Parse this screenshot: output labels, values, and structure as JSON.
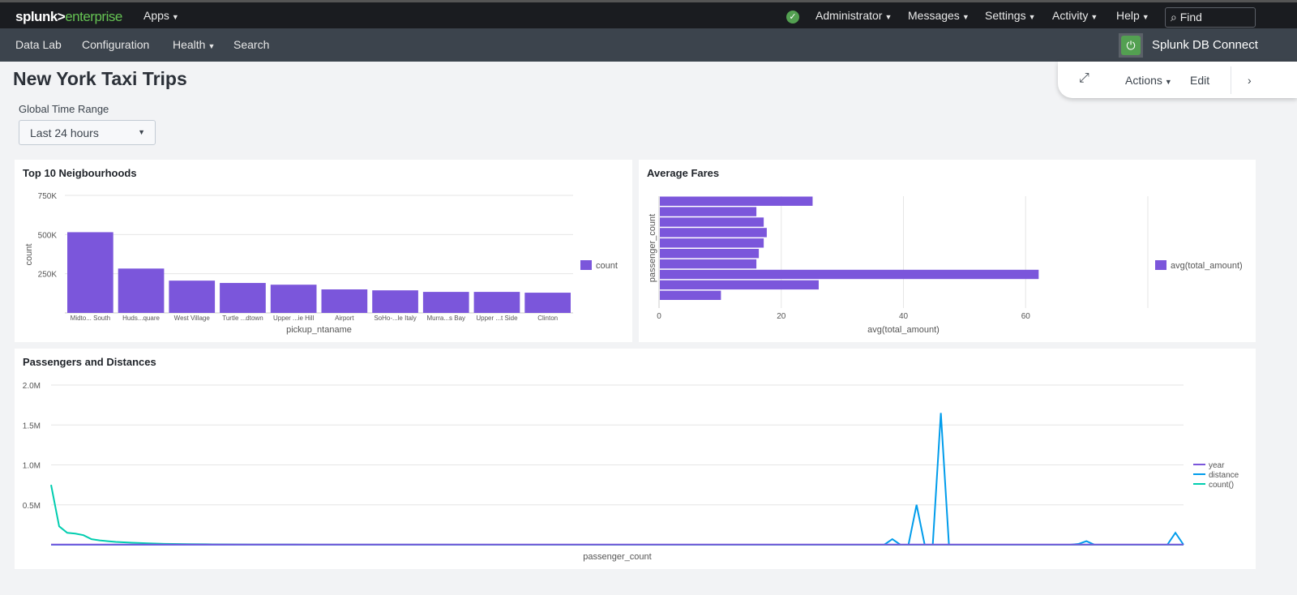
{
  "topbar": {
    "logo_main": "splunk>",
    "logo_accent": "enterprise",
    "apps": "Apps",
    "administrator": "Administrator",
    "messages": "Messages",
    "settings": "Settings",
    "activity": "Activity",
    "help": "Help",
    "find_placeholder": "Find",
    "status_icon": "check-circle-icon"
  },
  "appbar": {
    "items": [
      "Data Lab",
      "Configuration",
      "Health",
      "Search"
    ],
    "app_name": "Splunk DB Connect",
    "app_icon": "plug-icon"
  },
  "dashboard": {
    "title": "New York Taxi Trips",
    "actions": "Actions",
    "edit": "Edit",
    "expand_icon": "expand-icon",
    "next_icon": "chevron-right-icon"
  },
  "inputs": {
    "time_label": "Global Time Range",
    "time_value": "Last 24 hours"
  },
  "colors": {
    "bar": "#7b56db",
    "distance": "#009ceb",
    "count": "#00cdaf",
    "year": "#7b56db",
    "topbar": "#1a1c20",
    "appbar": "#3c444d"
  },
  "chart_data": [
    {
      "type": "bar",
      "title": "Top 10 Neigbourhoods",
      "xlabel": "pickup_ntaname",
      "ylabel": "count",
      "categories": [
        "Midto... South",
        "Huds...quare",
        "West Village",
        "Turtle ...dtown",
        "Upper ...ie Hill",
        "Airport",
        "SoHo-...le Italy",
        "Murra...s Bay",
        "Upper ...t Side",
        "Clinton"
      ],
      "values": [
        515000,
        283000,
        206000,
        191000,
        180000,
        150000,
        144000,
        134000,
        134000,
        129000
      ],
      "ylim": [
        0,
        750000
      ],
      "yticks": [
        "250K",
        "500K",
        "750K"
      ],
      "legend": [
        "count"
      ],
      "legend_position": "right",
      "grid": true
    },
    {
      "type": "bar",
      "orientation": "horizontal",
      "title": "Average Fares",
      "xlabel": "avg(total_amount)",
      "ylabel": "passenger_count",
      "values": [
        25,
        15.8,
        17,
        17.5,
        17,
        16.2,
        15.8,
        62,
        26,
        10
      ],
      "xlim": [
        0,
        80
      ],
      "xticks": [
        "0",
        "20",
        "40",
        "60"
      ],
      "legend": [
        "avg(total_amount)"
      ],
      "legend_position": "right",
      "grid": true
    },
    {
      "type": "line",
      "title": "Passengers and Distances",
      "xlabel": "passenger_count",
      "ylim": [
        0,
        2000000
      ],
      "yticks": [
        "0.5M",
        "1.0M",
        "1.5M",
        "2.0M"
      ],
      "xlim": [
        0,
        140
      ],
      "legend_position": "right",
      "grid": true,
      "series": [
        {
          "name": "year",
          "points": [
            [
              0,
              2016
            ],
            [
              140,
              2016
            ]
          ]
        },
        {
          "name": "distance",
          "points": [
            [
              0,
              0
            ],
            [
              103,
              0
            ],
            [
              104,
              70000
            ],
            [
              105,
              0
            ],
            [
              106,
              0
            ],
            [
              107,
              500000
            ],
            [
              108,
              0
            ],
            [
              109,
              0
            ],
            [
              110,
              1650000
            ],
            [
              111,
              0
            ],
            [
              126,
              0
            ],
            [
              127,
              10000
            ],
            [
              128,
              45000
            ],
            [
              129,
              0
            ],
            [
              138,
              0
            ],
            [
              139,
              150000
            ],
            [
              140,
              0
            ]
          ]
        },
        {
          "name": "count()",
          "points": [
            [
              0,
              750000
            ],
            [
              1,
              230000
            ],
            [
              2,
              150000
            ],
            [
              3,
              140000
            ],
            [
              4,
              120000
            ],
            [
              5,
              70000
            ],
            [
              6,
              55000
            ],
            [
              7,
              45000
            ],
            [
              8,
              35000
            ],
            [
              9,
              30000
            ],
            [
              10,
              25000
            ],
            [
              12,
              18000
            ],
            [
              14,
              12000
            ],
            [
              17,
              8000
            ],
            [
              20,
              5000
            ],
            [
              25,
              3000
            ],
            [
              30,
              2000
            ],
            [
              40,
              1000
            ],
            [
              60,
              500
            ],
            [
              140,
              0
            ]
          ]
        }
      ]
    }
  ]
}
